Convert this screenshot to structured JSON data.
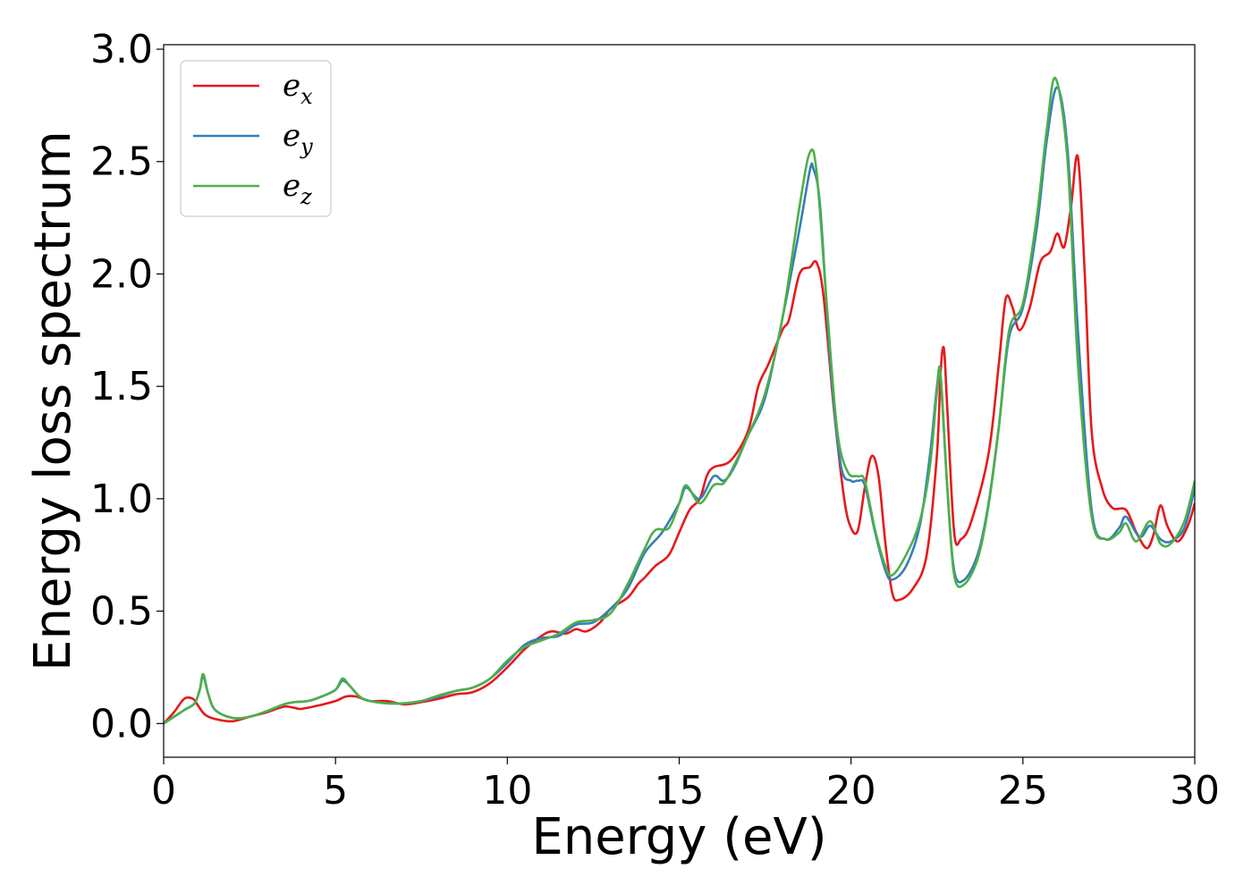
{
  "chart_data": {
    "type": "line",
    "title": "",
    "xlabel": "Energy (eV)",
    "ylabel": "Energy loss spectrum",
    "xlim": [
      0,
      30
    ],
    "ylim": [
      -0.15,
      3.02
    ],
    "xticks": [
      0,
      5,
      10,
      15,
      20,
      25,
      30
    ],
    "xtick_labels": [
      "0",
      "5",
      "10",
      "15",
      "20",
      "25",
      "30"
    ],
    "yticks": [
      0.0,
      0.5,
      1.0,
      1.5,
      2.0,
      2.5,
      3.0
    ],
    "ytick_labels": [
      "0.0",
      "0.5",
      "1.0",
      "1.5",
      "2.0",
      "2.5",
      "3.0"
    ],
    "grid": false,
    "legend": {
      "placement": "top-left"
    },
    "series": [
      {
        "name": "e",
        "subscript": "x",
        "color": "#e41a1c",
        "points": [
          [
            0,
            0
          ],
          [
            0.3,
            0.05
          ],
          [
            0.6,
            0.11
          ],
          [
            0.85,
            0.11
          ],
          [
            1.0,
            0.08
          ],
          [
            1.2,
            0.04
          ],
          [
            1.5,
            0.02
          ],
          [
            2.0,
            0.01
          ],
          [
            2.5,
            0.03
          ],
          [
            3.0,
            0.05
          ],
          [
            3.5,
            0.075
          ],
          [
            3.8,
            0.07
          ],
          [
            4.0,
            0.065
          ],
          [
            4.5,
            0.08
          ],
          [
            5.0,
            0.1
          ],
          [
            5.3,
            0.12
          ],
          [
            5.6,
            0.12
          ],
          [
            6.0,
            0.1
          ],
          [
            6.5,
            0.1
          ],
          [
            7.0,
            0.085
          ],
          [
            7.5,
            0.095
          ],
          [
            8.0,
            0.11
          ],
          [
            8.5,
            0.13
          ],
          [
            9.0,
            0.14
          ],
          [
            9.5,
            0.18
          ],
          [
            10.0,
            0.25
          ],
          [
            10.5,
            0.33
          ],
          [
            11.0,
            0.39
          ],
          [
            11.3,
            0.41
          ],
          [
            11.7,
            0.4
          ],
          [
            12.0,
            0.42
          ],
          [
            12.3,
            0.41
          ],
          [
            12.7,
            0.45
          ],
          [
            13.0,
            0.51
          ],
          [
            13.5,
            0.56
          ],
          [
            13.8,
            0.62
          ],
          [
            14.0,
            0.65
          ],
          [
            14.3,
            0.7
          ],
          [
            14.7,
            0.75
          ],
          [
            15.0,
            0.85
          ],
          [
            15.3,
            0.95
          ],
          [
            15.6,
            1.0
          ],
          [
            15.8,
            1.1
          ],
          [
            16.0,
            1.14
          ],
          [
            16.5,
            1.17
          ],
          [
            17.0,
            1.3
          ],
          [
            17.3,
            1.5
          ],
          [
            17.6,
            1.6
          ],
          [
            18.0,
            1.75
          ],
          [
            18.2,
            1.8
          ],
          [
            18.5,
            2.0
          ],
          [
            18.8,
            2.03
          ],
          [
            19.0,
            2.05
          ],
          [
            19.2,
            1.9
          ],
          [
            19.5,
            1.4
          ],
          [
            19.8,
            1.0
          ],
          [
            20.0,
            0.87
          ],
          [
            20.2,
            0.86
          ],
          [
            20.4,
            1.05
          ],
          [
            20.6,
            1.19
          ],
          [
            20.8,
            1.1
          ],
          [
            21.0,
            0.8
          ],
          [
            21.2,
            0.58
          ],
          [
            21.4,
            0.55
          ],
          [
            21.8,
            0.6
          ],
          [
            22.2,
            0.75
          ],
          [
            22.5,
            1.2
          ],
          [
            22.6,
            1.55
          ],
          [
            22.7,
            1.67
          ],
          [
            22.8,
            1.4
          ],
          [
            23.0,
            0.85
          ],
          [
            23.2,
            0.82
          ],
          [
            23.5,
            0.9
          ],
          [
            24.0,
            1.2
          ],
          [
            24.3,
            1.6
          ],
          [
            24.5,
            1.89
          ],
          [
            24.7,
            1.85
          ],
          [
            24.9,
            1.75
          ],
          [
            25.2,
            1.85
          ],
          [
            25.5,
            2.05
          ],
          [
            25.8,
            2.1
          ],
          [
            26.0,
            2.18
          ],
          [
            26.2,
            2.12
          ],
          [
            26.4,
            2.3
          ],
          [
            26.6,
            2.52
          ],
          [
            26.8,
            2.0
          ],
          [
            27.0,
            1.3
          ],
          [
            27.3,
            1.05
          ],
          [
            27.6,
            0.96
          ],
          [
            28.0,
            0.95
          ],
          [
            28.3,
            0.85
          ],
          [
            28.6,
            0.78
          ],
          [
            28.8,
            0.84
          ],
          [
            29.0,
            0.97
          ],
          [
            29.2,
            0.88
          ],
          [
            29.5,
            0.81
          ],
          [
            29.8,
            0.88
          ],
          [
            30.0,
            0.98
          ]
        ]
      },
      {
        "name": "e",
        "subscript": "y",
        "color": "#377eb8",
        "points": [
          [
            0,
            0
          ],
          [
            0.3,
            0.03
          ],
          [
            0.6,
            0.06
          ],
          [
            0.9,
            0.09
          ],
          [
            1.05,
            0.15
          ],
          [
            1.15,
            0.21
          ],
          [
            1.3,
            0.13
          ],
          [
            1.5,
            0.06
          ],
          [
            2.0,
            0.025
          ],
          [
            2.5,
            0.03
          ],
          [
            3.0,
            0.055
          ],
          [
            3.5,
            0.085
          ],
          [
            3.8,
            0.095
          ],
          [
            4.2,
            0.1
          ],
          [
            4.6,
            0.12
          ],
          [
            5.0,
            0.15
          ],
          [
            5.2,
            0.19
          ],
          [
            5.4,
            0.17
          ],
          [
            5.7,
            0.12
          ],
          [
            6.0,
            0.1
          ],
          [
            6.5,
            0.09
          ],
          [
            7.0,
            0.09
          ],
          [
            7.5,
            0.1
          ],
          [
            8.0,
            0.12
          ],
          [
            8.5,
            0.145
          ],
          [
            9.0,
            0.16
          ],
          [
            9.5,
            0.2
          ],
          [
            10.0,
            0.27
          ],
          [
            10.5,
            0.35
          ],
          [
            11.0,
            0.38
          ],
          [
            11.5,
            0.39
          ],
          [
            12.0,
            0.44
          ],
          [
            12.5,
            0.45
          ],
          [
            13.0,
            0.51
          ],
          [
            13.5,
            0.6
          ],
          [
            14.0,
            0.76
          ],
          [
            14.5,
            0.85
          ],
          [
            15.0,
            0.98
          ],
          [
            15.2,
            1.05
          ],
          [
            15.6,
            1.0
          ],
          [
            16.0,
            1.1
          ],
          [
            16.3,
            1.08
          ],
          [
            16.6,
            1.14
          ],
          [
            17.0,
            1.28
          ],
          [
            17.5,
            1.45
          ],
          [
            18.0,
            1.8
          ],
          [
            18.5,
            2.2
          ],
          [
            18.8,
            2.46
          ],
          [
            18.9,
            2.47
          ],
          [
            19.1,
            2.3
          ],
          [
            19.4,
            1.6
          ],
          [
            19.7,
            1.15
          ],
          [
            20.0,
            1.08
          ],
          [
            20.2,
            1.08
          ],
          [
            20.4,
            1.06
          ],
          [
            20.7,
            0.85
          ],
          [
            21.0,
            0.68
          ],
          [
            21.2,
            0.64
          ],
          [
            21.6,
            0.7
          ],
          [
            22.0,
            0.88
          ],
          [
            22.3,
            1.2
          ],
          [
            22.5,
            1.5
          ],
          [
            22.6,
            1.55
          ],
          [
            22.8,
            1.05
          ],
          [
            23.0,
            0.68
          ],
          [
            23.3,
            0.64
          ],
          [
            23.7,
            0.76
          ],
          [
            24.0,
            0.98
          ],
          [
            24.3,
            1.32
          ],
          [
            24.6,
            1.72
          ],
          [
            25.0,
            1.85
          ],
          [
            25.4,
            2.2
          ],
          [
            25.7,
            2.6
          ],
          [
            26.0,
            2.83
          ],
          [
            26.3,
            2.55
          ],
          [
            26.6,
            1.75
          ],
          [
            27.0,
            0.95
          ],
          [
            27.4,
            0.82
          ],
          [
            27.8,
            0.87
          ],
          [
            28.0,
            0.92
          ],
          [
            28.4,
            0.83
          ],
          [
            28.7,
            0.88
          ],
          [
            29.0,
            0.82
          ],
          [
            29.3,
            0.81
          ],
          [
            29.7,
            0.87
          ],
          [
            30.0,
            1.05
          ]
        ]
      },
      {
        "name": "e",
        "subscript": "z",
        "color": "#4daf4a",
        "points": [
          [
            0,
            0
          ],
          [
            0.3,
            0.03
          ],
          [
            0.6,
            0.06
          ],
          [
            0.9,
            0.09
          ],
          [
            1.05,
            0.15
          ],
          [
            1.15,
            0.22
          ],
          [
            1.3,
            0.13
          ],
          [
            1.5,
            0.06
          ],
          [
            2.0,
            0.025
          ],
          [
            2.5,
            0.03
          ],
          [
            3.0,
            0.055
          ],
          [
            3.5,
            0.085
          ],
          [
            3.8,
            0.095
          ],
          [
            4.2,
            0.1
          ],
          [
            4.6,
            0.12
          ],
          [
            5.0,
            0.15
          ],
          [
            5.2,
            0.2
          ],
          [
            5.4,
            0.17
          ],
          [
            5.7,
            0.12
          ],
          [
            6.0,
            0.1
          ],
          [
            6.5,
            0.09
          ],
          [
            7.0,
            0.09
          ],
          [
            7.5,
            0.1
          ],
          [
            8.0,
            0.125
          ],
          [
            8.5,
            0.145
          ],
          [
            9.0,
            0.16
          ],
          [
            9.5,
            0.2
          ],
          [
            10.0,
            0.28
          ],
          [
            10.5,
            0.34
          ],
          [
            11.0,
            0.37
          ],
          [
            11.5,
            0.4
          ],
          [
            12.0,
            0.45
          ],
          [
            12.5,
            0.46
          ],
          [
            13.0,
            0.49
          ],
          [
            13.5,
            0.62
          ],
          [
            14.0,
            0.78
          ],
          [
            14.3,
            0.86
          ],
          [
            14.7,
            0.87
          ],
          [
            15.0,
            0.98
          ],
          [
            15.2,
            1.06
          ],
          [
            15.6,
            0.98
          ],
          [
            16.0,
            1.06
          ],
          [
            16.3,
            1.07
          ],
          [
            16.6,
            1.15
          ],
          [
            17.0,
            1.28
          ],
          [
            17.5,
            1.47
          ],
          [
            18.0,
            1.8
          ],
          [
            18.5,
            2.3
          ],
          [
            18.8,
            2.54
          ],
          [
            19.0,
            2.45
          ],
          [
            19.3,
            1.85
          ],
          [
            19.6,
            1.3
          ],
          [
            19.9,
            1.12
          ],
          [
            20.2,
            1.1
          ],
          [
            20.4,
            1.08
          ],
          [
            20.7,
            0.86
          ],
          [
            21.0,
            0.7
          ],
          [
            21.2,
            0.66
          ],
          [
            21.6,
            0.75
          ],
          [
            22.0,
            0.9
          ],
          [
            22.3,
            1.15
          ],
          [
            22.5,
            1.48
          ],
          [
            22.6,
            1.56
          ],
          [
            22.8,
            1.05
          ],
          [
            23.0,
            0.66
          ],
          [
            23.3,
            0.62
          ],
          [
            23.7,
            0.74
          ],
          [
            24.0,
            0.97
          ],
          [
            24.3,
            1.32
          ],
          [
            24.6,
            1.75
          ],
          [
            25.0,
            1.87
          ],
          [
            25.4,
            2.25
          ],
          [
            25.7,
            2.65
          ],
          [
            25.95,
            2.87
          ],
          [
            26.3,
            2.5
          ],
          [
            26.6,
            1.6
          ],
          [
            27.0,
            0.92
          ],
          [
            27.4,
            0.82
          ],
          [
            27.8,
            0.85
          ],
          [
            28.0,
            0.89
          ],
          [
            28.3,
            0.81
          ],
          [
            28.7,
            0.9
          ],
          [
            29.0,
            0.8
          ],
          [
            29.3,
            0.8
          ],
          [
            29.7,
            0.9
          ],
          [
            30.0,
            1.08
          ]
        ]
      }
    ]
  }
}
